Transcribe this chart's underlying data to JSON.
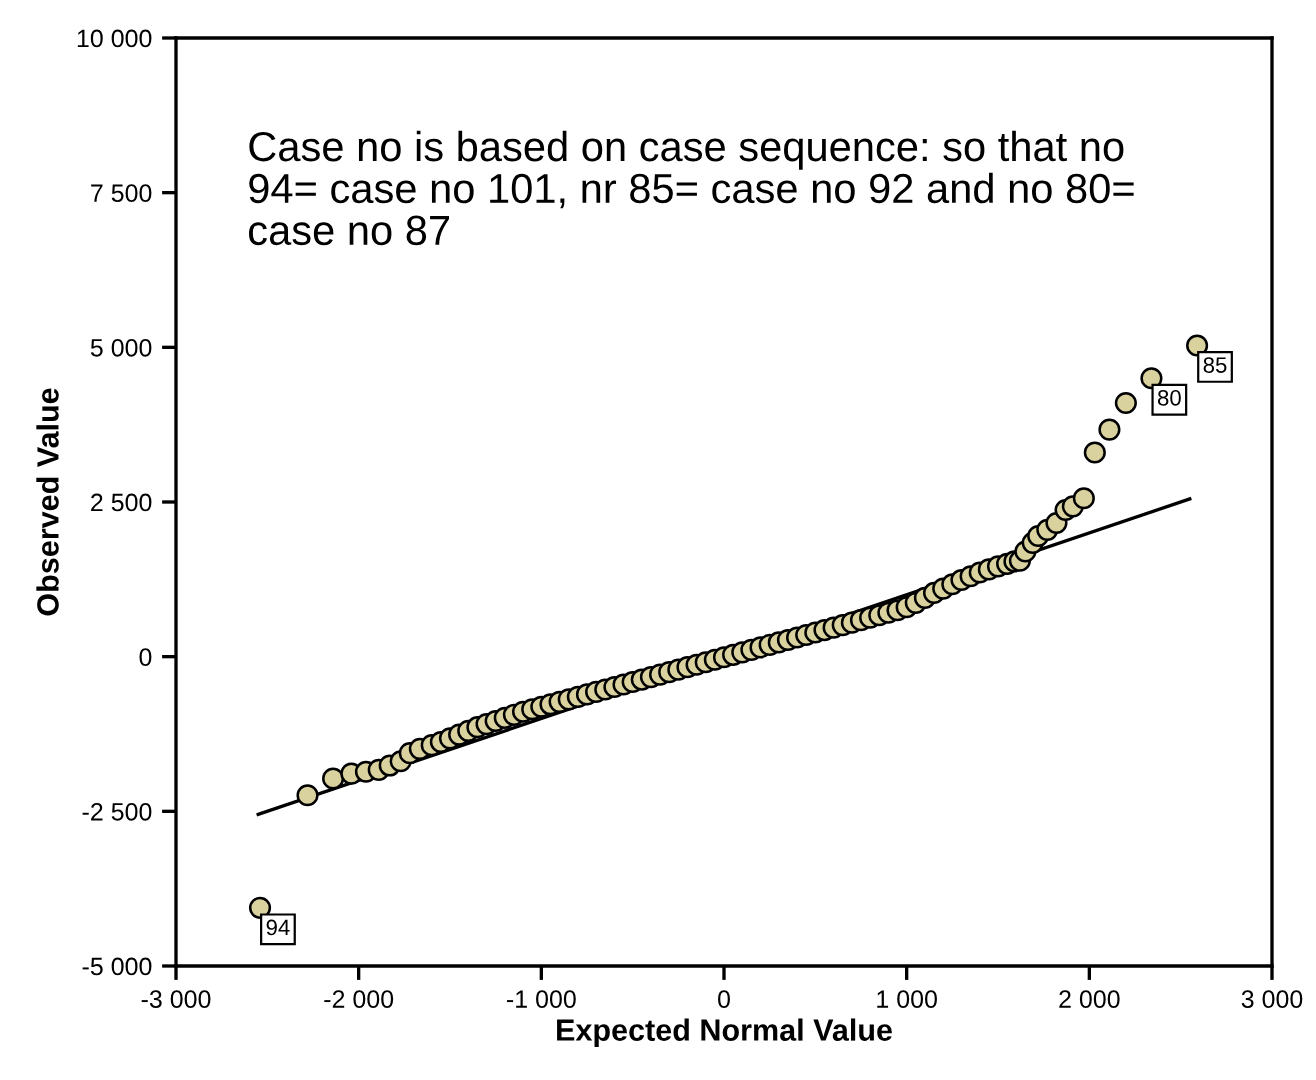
{
  "chart_data": {
    "type": "scatter",
    "xlabel": "Expected Normal Value",
    "ylabel": "Observed Value",
    "xlim": [
      -3000,
      3000
    ],
    "ylim": [
      -5000,
      10000
    ],
    "xticks": [
      {
        "value": -3000,
        "label": "-3 000"
      },
      {
        "value": -2000,
        "label": "-2 000"
      },
      {
        "value": -1000,
        "label": "-1 000"
      },
      0,
      {
        "value": 1000,
        "label": "1 000"
      },
      {
        "value": 2000,
        "label": "2 000"
      },
      {
        "value": 3000,
        "label": "3 000"
      }
    ],
    "yticks": [
      {
        "value": -5000,
        "label": "-5 000"
      },
      {
        "value": -2500,
        "label": "-2 500"
      },
      0,
      {
        "value": 2500,
        "label": "2 500"
      },
      {
        "value": 5000,
        "label": "5 000"
      },
      {
        "value": 7500,
        "label": "7 500"
      },
      {
        "value": 10000,
        "label": "10 000"
      }
    ],
    "grid": false,
    "marker": "circle",
    "series": [
      {
        "color": "#d9d29f",
        "x": [
          -2540,
          -2280,
          -2140,
          -2040,
          -1960,
          -1890,
          -1830,
          -1770,
          -1720,
          -1665,
          -1600,
          -1550,
          -1500,
          -1450,
          -1400,
          -1350,
          -1300,
          -1250,
          -1200,
          -1150,
          -1100,
          -1050,
          -1000,
          -950,
          -900,
          -850,
          -800,
          -750,
          -700,
          -650,
          -600,
          -550,
          -500,
          -450,
          -400,
          -350,
          -300,
          -250,
          -200,
          -150,
          -100,
          -50,
          0,
          50,
          100,
          150,
          200,
          250,
          300,
          350,
          400,
          450,
          500,
          550,
          600,
          650,
          700,
          750,
          800,
          850,
          900,
          950,
          1000,
          1050,
          1100,
          1150,
          1200,
          1250,
          1300,
          1350,
          1400,
          1450,
          1500,
          1550,
          1590,
          1620,
          1650,
          1690,
          1720,
          1770,
          1820,
          1870,
          1910,
          1970,
          2030,
          2110,
          2200,
          2340,
          2590
        ],
        "values": [
          -4060,
          -2240,
          -1970,
          -1890,
          -1860,
          -1830,
          -1760,
          -1690,
          -1560,
          -1490,
          -1430,
          -1380,
          -1320,
          -1260,
          -1200,
          -1140,
          -1090,
          -1040,
          -990,
          -940,
          -890,
          -850,
          -810,
          -770,
          -730,
          -690,
          -650,
          -610,
          -570,
          -530,
          -490,
          -450,
          -410,
          -370,
          -330,
          -290,
          -250,
          -210,
          -170,
          -130,
          -90,
          -50,
          -10,
          30,
          70,
          110,
          150,
          190,
          230,
          270,
          310,
          350,
          390,
          430,
          470,
          510,
          550,
          590,
          630,
          670,
          710,
          750,
          800,
          870,
          950,
          1030,
          1100,
          1170,
          1240,
          1300,
          1360,
          1410,
          1460,
          1500,
          1540,
          1550,
          1700,
          1840,
          1950,
          2050,
          2160,
          2370,
          2430,
          2560,
          3300,
          3670,
          4100,
          4500,
          5030
        ]
      },
      {
        "type": "line",
        "color": "#000000",
        "marker": "none",
        "line_style": "solid",
        "x": [
          -2550,
          2550
        ],
        "values": [
          -2550,
          2550
        ]
      }
    ],
    "annotations": [
      "Case no is based on case sequence: so that no 94= case no 101, nr 85= case no 92 and no 80= case no 87",
      {
        "text": "94",
        "x": -2540,
        "y": -4060
      },
      {
        "text": "80",
        "x": 2340,
        "y": 4500
      },
      {
        "text": "85",
        "x": 2590,
        "y": 5030
      }
    ]
  }
}
